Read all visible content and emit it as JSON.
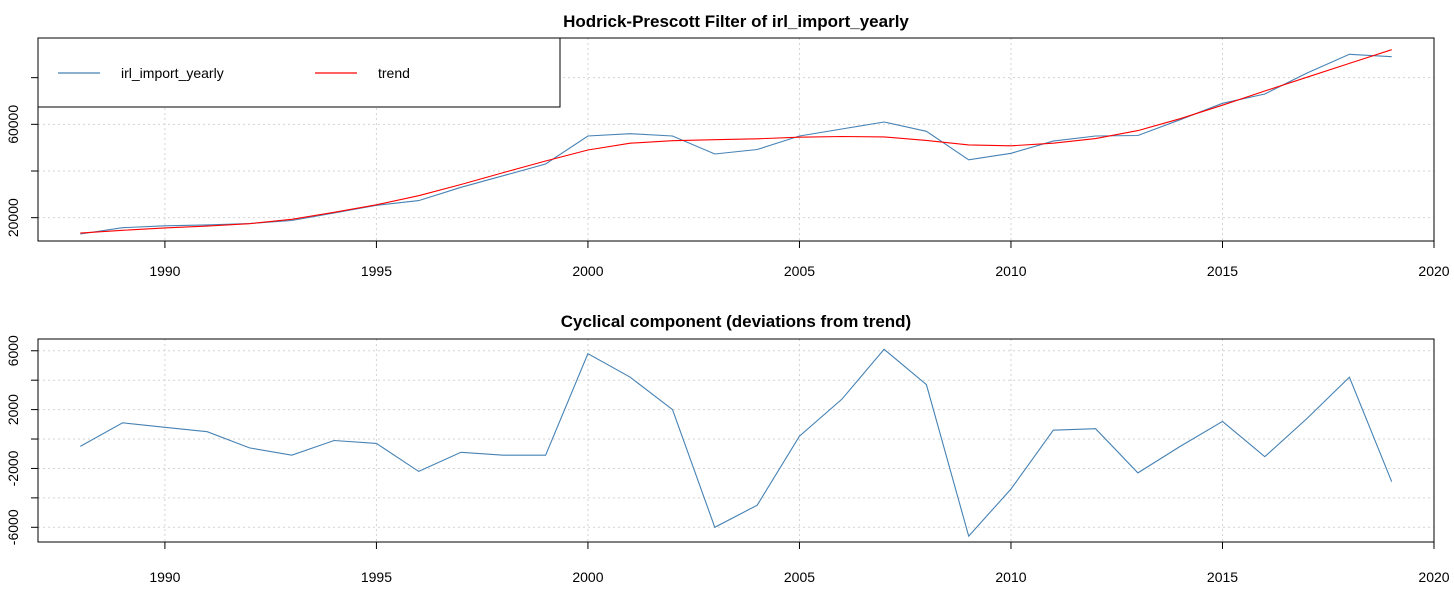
{
  "chart_data": [
    {
      "type": "line",
      "title": "Hodrick-Prescott Filter of irl_import_yearly",
      "xlabel": "",
      "ylabel": "",
      "xlim": [
        1987,
        2020
      ],
      "ylim": [
        10000,
        97000
      ],
      "x_ticks": [
        1990,
        1995,
        2000,
        2005,
        2010,
        2015,
        2020
      ],
      "y_ticks_labeled": [
        20000,
        60000
      ],
      "y_ticks": [
        20000,
        40000,
        60000,
        80000
      ],
      "grid": true,
      "legend": "top-left",
      "x": [
        1988,
        1989,
        1990,
        1991,
        1992,
        1993,
        1994,
        1995,
        1996,
        1997,
        1998,
        1999,
        2000,
        2001,
        2002,
        2003,
        2004,
        2005,
        2006,
        2007,
        2008,
        2009,
        2010,
        2011,
        2012,
        2013,
        2014,
        2015,
        2016,
        2017,
        2018,
        2019
      ],
      "series": [
        {
          "name": "irl_import_yearly",
          "color": "#4682b4",
          "values": [
            13000,
            15700,
            16500,
            16900,
            17500,
            18800,
            22000,
            25300,
            27300,
            33000,
            38000,
            43000,
            55000,
            56000,
            55000,
            47300,
            49200,
            55000,
            58000,
            61000,
            57000,
            44800,
            47600,
            52800,
            55000,
            55200,
            62000,
            69000,
            73000,
            82000,
            90000,
            89000
          ]
        },
        {
          "name": "trend",
          "color": "#ff0000",
          "values": [
            13400,
            14600,
            15600,
            16400,
            17400,
            19300,
            22300,
            25500,
            29400,
            34200,
            39300,
            44300,
            49000,
            51900,
            53000,
            53400,
            53800,
            54500,
            54800,
            54600,
            53100,
            51200,
            50800,
            51900,
            53900,
            57300,
            62400,
            68200,
            74300,
            80200,
            86100,
            92000
          ]
        }
      ]
    },
    {
      "type": "line",
      "title": "Cyclical component (deviations from trend)",
      "xlabel": "",
      "ylabel": "",
      "xlim": [
        1987,
        2020
      ],
      "ylim": [
        -7000,
        6800
      ],
      "x_ticks": [
        1990,
        1995,
        2000,
        2005,
        2010,
        2015,
        2020
      ],
      "y_ticks_labeled": [
        -6000,
        -2000,
        2000,
        6000
      ],
      "y_ticks": [
        -6000,
        -4000,
        -2000,
        0,
        2000,
        4000,
        6000
      ],
      "grid": true,
      "x": [
        1988,
        1989,
        1990,
        1991,
        1992,
        1993,
        1994,
        1995,
        1996,
        1997,
        1998,
        1999,
        2000,
        2001,
        2002,
        2003,
        2004,
        2005,
        2006,
        2007,
        2008,
        2009,
        2010,
        2011,
        2012,
        2013,
        2014,
        2015,
        2016,
        2017,
        2018,
        2019
      ],
      "series": [
        {
          "color": "#4682b4",
          "values": [
            -500,
            1100,
            800,
            500,
            -600,
            -1100,
            -100,
            -300,
            -2200,
            -900,
            -1100,
            -1100,
            5800,
            4200,
            2000,
            -6000,
            -4500,
            200,
            2700,
            6100,
            3700,
            -6600,
            -3400,
            600,
            700,
            -2300,
            -500,
            1200,
            -1200,
            1400,
            4200,
            -2900
          ]
        }
      ]
    }
  ]
}
